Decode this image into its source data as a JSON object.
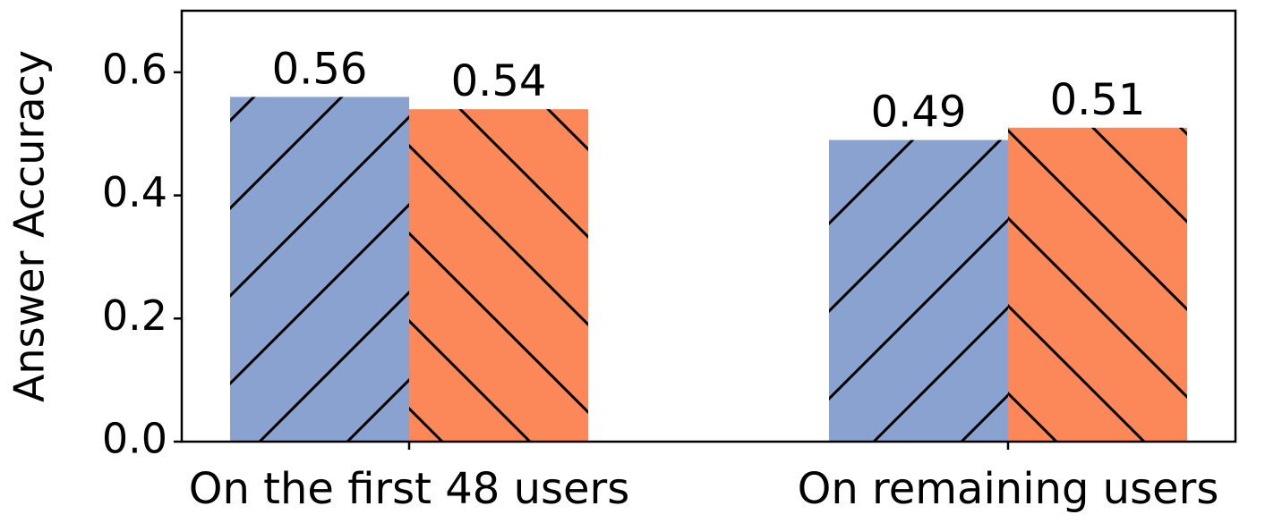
{
  "chart_data": {
    "type": "bar",
    "y_label": "Answer Accuracy",
    "categories": [
      "On the first 48 users",
      "On remaining users"
    ],
    "series": [
      {
        "color": "#8aa2cf",
        "hatch": "/",
        "values": [
          0.56,
          0.49
        ]
      },
      {
        "color": "#fc8758",
        "hatch": "\\",
        "values": [
          0.54,
          0.51
        ]
      }
    ],
    "ylim": [
      0,
      0.7
    ],
    "yticks": [
      {
        "value": 0,
        "label": "0.0"
      },
      0.2,
      0.4,
      0.6
    ]
  }
}
